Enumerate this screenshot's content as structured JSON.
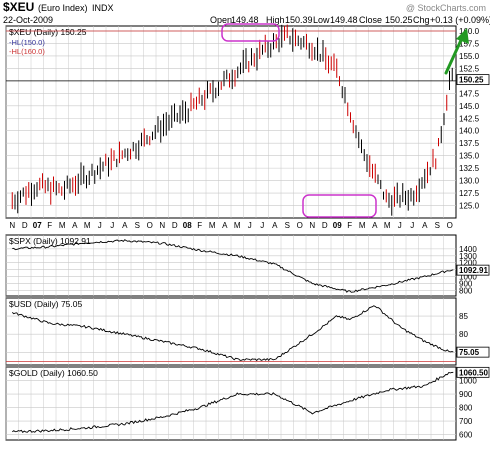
{
  "header": {
    "symbol": "$XEU",
    "name": "(Euro Index)",
    "exchange": "INDX",
    "date": "22-Oct-2009",
    "open_label": "Open",
    "open": "149.48",
    "high_label": "High",
    "high": "150.39",
    "low_label": "Low",
    "low": "149.48",
    "close_label": "Close",
    "close": "150.25",
    "chg_label": "Chg",
    "chg": "+0.13 (+0.09%)",
    "watermark": "@ StockCharts.com"
  },
  "colors": {
    "price_bar": "#000000",
    "price_bar_down": "#cc0000",
    "hl_blue": "#333399",
    "hl_red": "#cc3333",
    "highlight_box": "#cc33cc",
    "green_arrow": "#229922",
    "grid": "#c8c8c8",
    "ref_line": "#000000"
  },
  "chart_data": [
    {
      "type": "line",
      "panel": "main",
      "title": "$XEU (Daily) 150.25",
      "legend": [
        "HL(150.0)",
        "HL(160.0)"
      ],
      "ylim": [
        122.5,
        161
      ],
      "yticks": [
        125.0,
        127.5,
        130.0,
        132.5,
        135.0,
        137.5,
        140.0,
        142.5,
        145.0,
        147.5,
        150.0,
        152.5,
        155.0,
        157.5,
        160.0
      ],
      "ytick_labels": [
        "125.0",
        "127.5",
        "130.0",
        "132.5",
        "135.0",
        "137.5",
        "140.0",
        "142.5",
        "145.0",
        "147.5",
        "150.0",
        "152.5",
        "155.0",
        "157.5",
        "160.0"
      ],
      "last_value": "150.25",
      "hlines": [
        150.0,
        160.0
      ],
      "x_labels": [
        "N",
        "D",
        "07",
        "F",
        "M",
        "A",
        "M",
        "J",
        "J",
        "A",
        "S",
        "O",
        "N",
        "D",
        "08",
        "F",
        "M",
        "A",
        "M",
        "J",
        "J",
        "A",
        "S",
        "O",
        "N",
        "D",
        "09",
        "F",
        "M",
        "A",
        "M",
        "J",
        "J",
        "A",
        "S",
        "O"
      ],
      "x": [
        0,
        2,
        4,
        6,
        8,
        10,
        12,
        14,
        16,
        18,
        20,
        22,
        24,
        26,
        28,
        30,
        32,
        34,
        35
      ],
      "values": [
        126,
        129,
        128,
        131,
        134,
        137,
        141,
        144,
        148,
        152,
        156,
        159,
        157,
        152,
        136,
        126,
        127,
        135,
        150.25
      ]
    },
    {
      "type": "line",
      "panel": "spx",
      "title": "$SPX (Daily) 1092.91",
      "ylim": [
        720,
        1600
      ],
      "yticks": [
        800,
        900,
        1000,
        1100,
        1200,
        1300,
        1400
      ],
      "ytick_labels": [
        "800",
        "900",
        "1000",
        "1100",
        "1200",
        "1300",
        "1400"
      ],
      "last_value": "1092.91",
      "x": [
        0,
        3,
        6,
        9,
        12,
        15,
        18,
        21,
        24,
        27,
        30,
        33,
        35
      ],
      "values": [
        1400,
        1430,
        1490,
        1520,
        1480,
        1380,
        1300,
        1180,
        900,
        780,
        880,
        1000,
        1092.91
      ]
    },
    {
      "type": "line",
      "panel": "usd",
      "title": "$USD (Daily) 75.05",
      "ylim": [
        71.5,
        90
      ],
      "yticks": [
        75,
        80,
        85
      ],
      "ytick_labels": [
        "75",
        "80",
        "85"
      ],
      "last_value": "75.05",
      "hline": 72.5,
      "x": [
        0,
        3,
        6,
        9,
        12,
        15,
        18,
        21,
        24,
        26,
        27,
        29,
        31,
        33,
        35
      ],
      "values": [
        86,
        83,
        82,
        80,
        78,
        76,
        73,
        73,
        80,
        85,
        84,
        88,
        82,
        78,
        75.05
      ]
    },
    {
      "type": "line",
      "panel": "gold",
      "title": "$GOLD (Daily) 1060.50",
      "ylim": [
        560,
        1100
      ],
      "yticks": [
        600,
        700,
        800,
        900,
        1000
      ],
      "ytick_labels": [
        "600",
        "700",
        "800",
        "900",
        "1000"
      ],
      "last_value": "1060.50",
      "x": [
        0,
        3,
        6,
        9,
        12,
        15,
        18,
        21,
        24,
        27,
        30,
        33,
        35
      ],
      "values": [
        620,
        630,
        650,
        680,
        730,
        800,
        900,
        900,
        760,
        850,
        930,
        960,
        1060.5
      ]
    }
  ]
}
